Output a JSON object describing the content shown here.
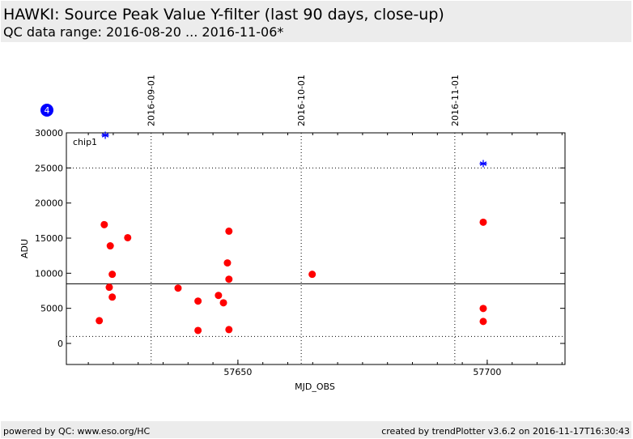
{
  "chart_data": {
    "type": "scatter",
    "title": "HAWKI: Source Peak Value Y-filter (last 90 days, close-up)",
    "subtitle": "QC data range: 2016-08-20 ... 2016-11-06*",
    "xlabel": "MJD_OBS",
    "ylabel": "ADU",
    "xlim": [
      57615.6,
      57715.6
    ],
    "ylim": [
      -3000,
      30000
    ],
    "xticks": [
      57650,
      57700
    ],
    "xminor_step": 5,
    "yticks": [
      0,
      5000,
      10000,
      15000,
      20000,
      25000,
      30000
    ],
    "top_ticks": [
      {
        "value": 57632.6,
        "label": "2016-09-01"
      },
      {
        "value": 57662.7,
        "label": "2016-10-01"
      },
      {
        "value": 57693.5,
        "label": "2016-11-01"
      }
    ],
    "hlines": [
      {
        "value": 25000,
        "style": "dotted"
      },
      {
        "value": 1000,
        "style": "dotted"
      },
      {
        "value": 8500,
        "style": "solid"
      }
    ],
    "panel_label": "chip1",
    "badge": "4",
    "series": [
      {
        "color": "#ff0000",
        "marker": "circle",
        "x": [
          57623.2,
          57624.4,
          57627.9,
          57624.8,
          57624.2,
          57624.8,
          57622.2,
          57638.0,
          57642.0,
          57642.0,
          57646.1,
          57647.1,
          57648.2,
          57647.9,
          57648.2,
          57648.2,
          57664.9,
          57699.2,
          57699.2,
          57699.2
        ],
        "values": [
          16920,
          13900,
          15060,
          9850,
          8000,
          6600,
          3240,
          7880,
          6030,
          1850,
          6840,
          5790,
          15990,
          11470,
          9150,
          1970,
          9850,
          17270,
          4980,
          3130
        ]
      },
      {
        "color": "#0000ff",
        "marker": "star",
        "x": [
          57623.4,
          57699.2
        ],
        "values": [
          29660,
          25610
        ]
      }
    ]
  },
  "footer": {
    "left": "powered by QC: www.eso.org/HC",
    "right": "created by trendPlotter v3.6.2 on 2016-11-17T16:30:43"
  }
}
